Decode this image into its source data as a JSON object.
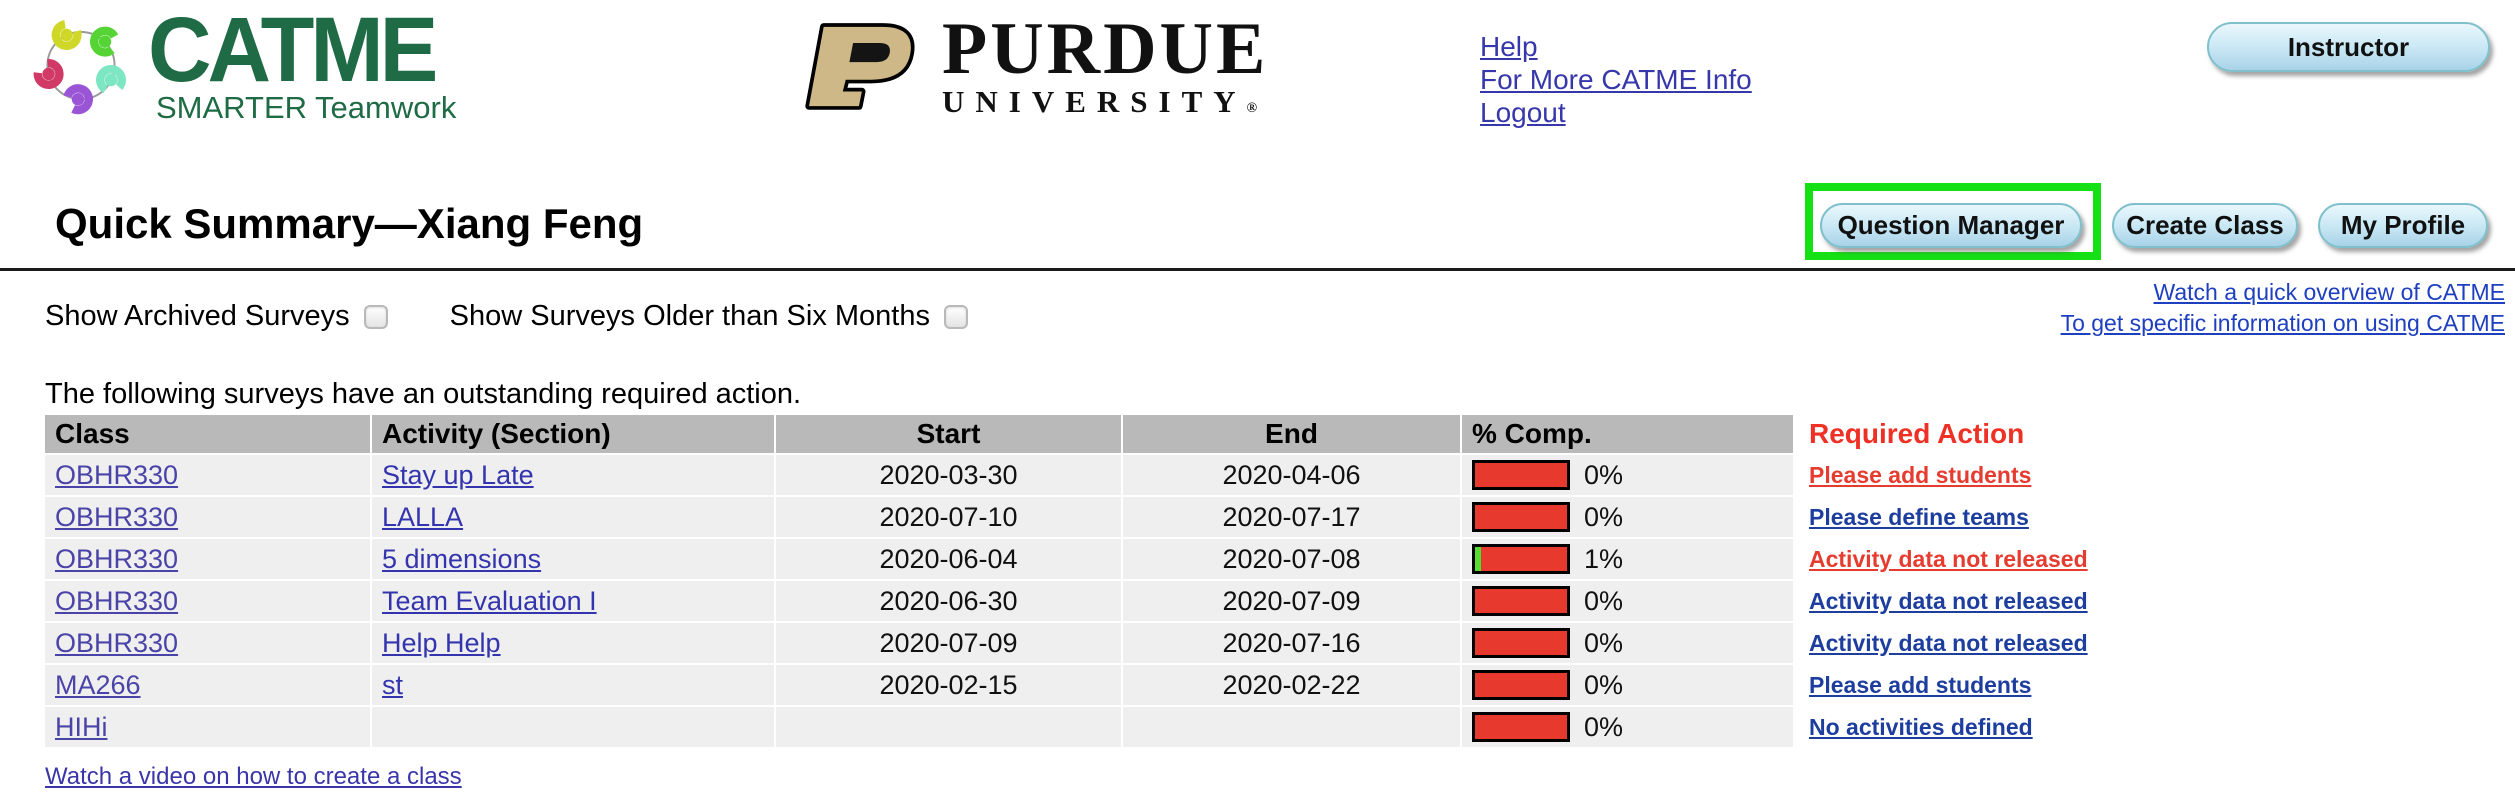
{
  "header": {
    "catme": {
      "wordmark": "CATME",
      "tagline": "SMARTER Teamwork"
    },
    "purdue": {
      "wordmark": "PURDUE",
      "line2": "UNIVERSITY",
      "registered": "®"
    },
    "links": {
      "help": "Help",
      "more_info": "For More CATME Info",
      "logout": "Logout"
    },
    "instructor_button": "Instructor"
  },
  "titlebar": {
    "title": "Quick Summary—Xiang Feng",
    "question_manager": "Question Manager",
    "create_class": "Create Class",
    "my_profile": "My Profile"
  },
  "quick_links": {
    "overview": "Watch a quick overview of CATME",
    "specific": "To get specific information on using CATME"
  },
  "filters": [
    {
      "label": "Show Archived Surveys",
      "checked": false
    },
    {
      "label": "Show Surveys Older than Six Months",
      "checked": false
    }
  ],
  "intro_text": "The following surveys have an outstanding required action.",
  "table": {
    "headers": [
      "Class",
      "Activity (Section)",
      "Start",
      "End",
      "% Comp.",
      "Required Action"
    ],
    "rows": [
      {
        "class": "OBHR330",
        "activity": "Stay up Late",
        "start": "2020-03-30",
        "end": "2020-04-06",
        "pct": "0%",
        "pct_value": 0,
        "action": "Please add students",
        "action_color": "red"
      },
      {
        "class": "OBHR330",
        "activity": "LALLA",
        "start": "2020-07-10",
        "end": "2020-07-17",
        "pct": "0%",
        "pct_value": 0,
        "action": "Please define teams",
        "action_color": "blue"
      },
      {
        "class": "OBHR330",
        "activity": "5 dimensions",
        "start": "2020-06-04",
        "end": "2020-07-08",
        "pct": "1%",
        "pct_value": 1,
        "action": "Activity data not released",
        "action_color": "red"
      },
      {
        "class": "OBHR330",
        "activity": "Team Evaluation I",
        "start": "2020-06-30",
        "end": "2020-07-09",
        "pct": "0%",
        "pct_value": 0,
        "action": "Activity data not released",
        "action_color": "blue"
      },
      {
        "class": "OBHR330",
        "activity": "Help Help",
        "start": "2020-07-09",
        "end": "2020-07-16",
        "pct": "0%",
        "pct_value": 0,
        "action": "Activity data not released",
        "action_color": "blue"
      },
      {
        "class": "MA266",
        "activity": "st",
        "start": "2020-02-15",
        "end": "2020-02-22",
        "pct": "0%",
        "pct_value": 0,
        "action": "Please add students",
        "action_color": "blue"
      },
      {
        "class": "HIHi",
        "activity": "",
        "start": "",
        "end": "",
        "pct": "0%",
        "pct_value": 0,
        "action": "No activities defined",
        "action_color": "blue"
      }
    ]
  },
  "footer_link": "Watch a video on how to create a class",
  "colors": {
    "catme_green": "#1e6b45",
    "purdue_gold": "#ceb888",
    "header_link_blue": "#3737ac",
    "quick_link_blue": "#1d3fc0",
    "class_link_purple": "#4b44a8",
    "activity_link_blue": "#3434ae",
    "action_red": "#e63c30",
    "action_blue": "#1d3e9e",
    "required_action_header_red": "#ee3124",
    "bar_red": "#e8392f",
    "bar_green": "#55dd33",
    "table_header_gray": "#b9b9b9",
    "table_row_gray": "#efefef",
    "annotation_green": "#14e014",
    "button_border_teal": "#7fc0cc"
  }
}
